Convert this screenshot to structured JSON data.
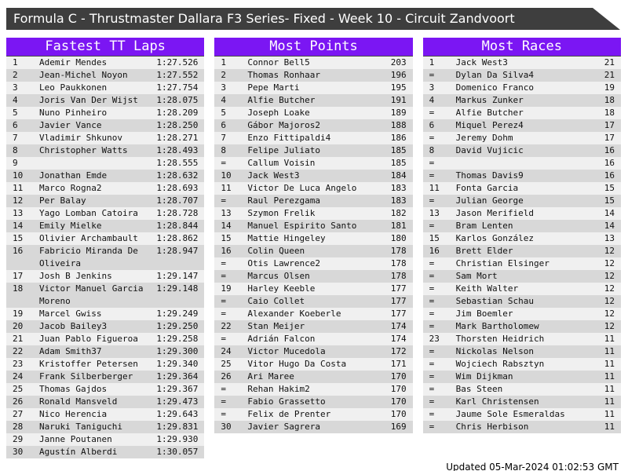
{
  "title_bar": {
    "title": "Formula C - Thrustmaster Dallara F3 Series- Fixed - Week 10 - Circuit Zandvoort"
  },
  "colors": {
    "accent_purple": "#7b16f3",
    "titlebar_bg": "#3e3e3e",
    "row_light": "#f0f0f0",
    "row_dark": "#d8d8d8"
  },
  "boards": [
    {
      "title": "Fastest TT Laps",
      "rows": [
        [
          "1",
          "Ademir Mendes",
          "1:27.526"
        ],
        [
          "2",
          "Jean-Michel Noyon",
          "1:27.552"
        ],
        [
          "3",
          "Leo Paukkonen",
          "1:27.754"
        ],
        [
          "4",
          "Joris Van Der Wijst",
          "1:28.075"
        ],
        [
          "5",
          "Nuno Pinheiro",
          "1:28.209"
        ],
        [
          "6",
          "Javier Vance",
          "1:28.250"
        ],
        [
          "7",
          "Vladimir Shkunov",
          "1:28.271"
        ],
        [
          "8",
          "Christopher Watts",
          "1:28.493"
        ],
        [
          "9",
          "",
          "1:28.555"
        ],
        [
          "10",
          "Jonathan Emde",
          "1:28.632"
        ],
        [
          "11",
          "Marco Rogna2",
          "1:28.693"
        ],
        [
          "12",
          "Per Balay",
          "1:28.707"
        ],
        [
          "13",
          "Yago Lomban Catoira",
          "1:28.728"
        ],
        [
          "14",
          "Emily Mielke",
          "1:28.844"
        ],
        [
          "15",
          "Olivier Archambault",
          "1:28.862"
        ],
        [
          "16",
          "Fabricio Miranda De Oliveira",
          "1:28.947"
        ],
        [
          "17",
          "Josh B Jenkins",
          "1:29.147"
        ],
        [
          "18",
          "Victor Manuel Garcia Moreno",
          "1:29.148"
        ],
        [
          "19",
          "Marcel Gwiss",
          "1:29.249"
        ],
        [
          "20",
          "Jacob Bailey3",
          "1:29.250"
        ],
        [
          "21",
          "Juan Pablo Figueroa",
          "1:29.258"
        ],
        [
          "22",
          "Adam Smith37",
          "1:29.300"
        ],
        [
          "23",
          "Kristoffer Petersen",
          "1:29.340"
        ],
        [
          "24",
          "Frank Silberberger",
          "1:29.364"
        ],
        [
          "25",
          "Thomas Gajdos",
          "1:29.367"
        ],
        [
          "26",
          "Ronald Mansveld",
          "1:29.473"
        ],
        [
          "27",
          "Nico Herencia",
          "1:29.643"
        ],
        [
          "28",
          "Naruki Taniguchi",
          "1:29.831"
        ],
        [
          "29",
          "Janne Poutanen",
          "1:29.930"
        ],
        [
          "30",
          "Agustín Alberdi",
          "1:30.057"
        ]
      ]
    },
    {
      "title": "Most Points",
      "rows": [
        [
          "1",
          "Connor Bell5",
          "203"
        ],
        [
          "2",
          "Thomas Ronhaar",
          "196"
        ],
        [
          "3",
          "Pepe Marti",
          "195"
        ],
        [
          "4",
          "Alfie Butcher",
          "191"
        ],
        [
          "5",
          "Joseph Loake",
          "189"
        ],
        [
          "6",
          "Gábor Majoros2",
          "188"
        ],
        [
          "7",
          "Enzo Fittipaldi4",
          "186"
        ],
        [
          "8",
          "Felipe Juliato",
          "185"
        ],
        [
          "=",
          "Callum Voisin",
          "185"
        ],
        [
          "10",
          "Jack West3",
          "184"
        ],
        [
          "11",
          "Victor De Luca Angelo",
          "183"
        ],
        [
          "=",
          "Raul Perezgama",
          "183"
        ],
        [
          "13",
          "Szymon Frelik",
          "182"
        ],
        [
          "14",
          "Manuel Espirito Santo",
          "181"
        ],
        [
          "15",
          "Mattie Hingeley",
          "180"
        ],
        [
          "16",
          "Colin Queen",
          "178"
        ],
        [
          "=",
          "Otis Lawrence2",
          "178"
        ],
        [
          "=",
          "Marcus Olsen",
          "178"
        ],
        [
          "19",
          "Harley Keeble",
          "177"
        ],
        [
          "=",
          "Caio Collet",
          "177"
        ],
        [
          "=",
          "Alexander Koeberle",
          "177"
        ],
        [
          "22",
          "Stan Meijer",
          "174"
        ],
        [
          "=",
          "Adrián Falcon",
          "174"
        ],
        [
          "24",
          "Victor Mucedola",
          "172"
        ],
        [
          "25",
          "Vitor Hugo Da Costa",
          "171"
        ],
        [
          "26",
          "Ari Maree",
          "170"
        ],
        [
          "=",
          "Rehan Hakim2",
          "170"
        ],
        [
          "=",
          "Fabio Grassetto",
          "170"
        ],
        [
          "=",
          "Felix de Prenter",
          "170"
        ],
        [
          "30",
          "Javier Sagrera",
          "169"
        ]
      ]
    },
    {
      "title": "Most Races",
      "rows": [
        [
          "1",
          "Jack West3",
          "21"
        ],
        [
          "=",
          "Dylan Da Silva4",
          "21"
        ],
        [
          "3",
          "Domenico Franco",
          "19"
        ],
        [
          "4",
          "Markus Zunker",
          "18"
        ],
        [
          "=",
          "Alfie Butcher",
          "18"
        ],
        [
          "6",
          "Miquel Perez4",
          "17"
        ],
        [
          "=",
          "Jeremy Dohm",
          "17"
        ],
        [
          "8",
          "David Vujicic",
          "16"
        ],
        [
          "=",
          "",
          "16"
        ],
        [
          "=",
          "Thomas Davis9",
          "16"
        ],
        [
          "11",
          "Fonta Garcia",
          "15"
        ],
        [
          "=",
          "Julian George",
          "15"
        ],
        [
          "13",
          "Jason Merifield",
          "14"
        ],
        [
          "=",
          "Bram Lenten",
          "14"
        ],
        [
          "15",
          "Karlos González",
          "13"
        ],
        [
          "16",
          "Brett Elder",
          "12"
        ],
        [
          "=",
          "Christian Elsinger",
          "12"
        ],
        [
          "=",
          "Sam Mort",
          "12"
        ],
        [
          "=",
          "Keith Walter",
          "12"
        ],
        [
          "=",
          "Sebastian Schau",
          "12"
        ],
        [
          "=",
          "Jim Boemler",
          "12"
        ],
        [
          "=",
          "Mark Bartholomew",
          "12"
        ],
        [
          "23",
          "Thorsten Heidrich",
          "11"
        ],
        [
          "=",
          "Nickolas Nelson",
          "11"
        ],
        [
          "=",
          "Wojciech Rabsztyn",
          "11"
        ],
        [
          "=",
          "Wim Dijkman",
          "11"
        ],
        [
          "=",
          "Bas Steen",
          "11"
        ],
        [
          "=",
          "Karl Christensen",
          "11"
        ],
        [
          "=",
          "Jaume Sole Esmeraldas",
          "11"
        ],
        [
          "=",
          "Chris Herbison",
          "11"
        ]
      ]
    }
  ],
  "footer": {
    "updated": "Updated 05-Mar-2024 01:02:53 GMT"
  }
}
